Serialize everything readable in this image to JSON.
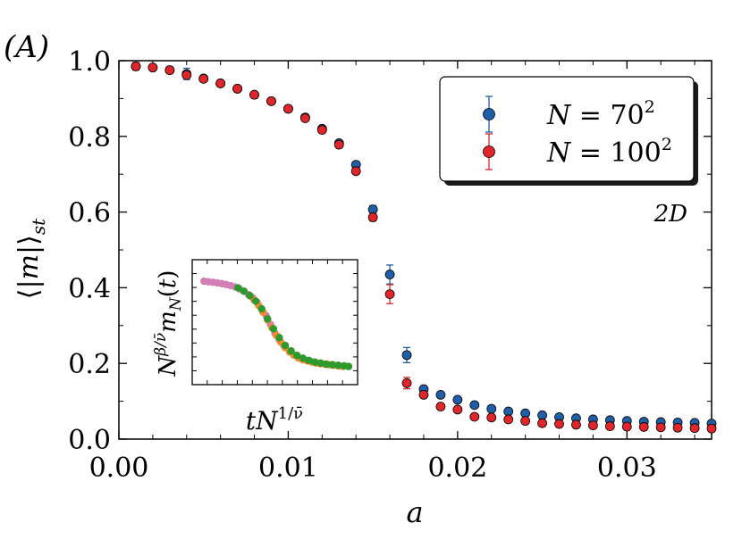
{
  "panel_label": "(A)",
  "colors": {
    "series_70": "#1f5fa8",
    "series_100": "#e0262a",
    "inset_pink": "#d37fb6",
    "inset_green": "#2e9a2e",
    "inset_orange": "#f08a2a"
  },
  "chart_data": [
    {
      "type": "scatter",
      "title": "",
      "xlabel": "a",
      "ylabel": "⟨|m|⟩st",
      "xlim": [
        0.0,
        0.035
      ],
      "ylim": [
        0.0,
        1.0
      ],
      "xticks": [
        0.0,
        0.01,
        0.02,
        0.03
      ],
      "xtick_labels": [
        "0.00",
        "0.01",
        "0.02",
        "0.03"
      ],
      "yticks": [
        0.0,
        0.2,
        0.4,
        0.6,
        0.8,
        1.0
      ],
      "ytick_labels": [
        "0.0",
        "0.2",
        "0.4",
        "0.6",
        "0.8",
        "1.0"
      ],
      "annotation": "2D",
      "legend_position": "top-right",
      "series": [
        {
          "name": "N = 70²",
          "legend_text": "N = 70",
          "legend_exp": "2",
          "color": "#1f5fa8",
          "points": [
            {
              "x": 0.001,
              "y": 0.985,
              "err": 0.01
            },
            {
              "x": 0.002,
              "y": 0.982,
              "err": 0
            },
            {
              "x": 0.003,
              "y": 0.975,
              "err": 0
            },
            {
              "x": 0.004,
              "y": 0.965,
              "err": 0.015
            },
            {
              "x": 0.005,
              "y": 0.953,
              "err": 0
            },
            {
              "x": 0.006,
              "y": 0.94,
              "err": 0
            },
            {
              "x": 0.007,
              "y": 0.926,
              "err": 0
            },
            {
              "x": 0.008,
              "y": 0.91,
              "err": 0
            },
            {
              "x": 0.009,
              "y": 0.893,
              "err": 0
            },
            {
              "x": 0.01,
              "y": 0.873,
              "err": 0
            },
            {
              "x": 0.011,
              "y": 0.85,
              "err": 0
            },
            {
              "x": 0.012,
              "y": 0.82,
              "err": 0
            },
            {
              "x": 0.013,
              "y": 0.782,
              "err": 0
            },
            {
              "x": 0.014,
              "y": 0.725,
              "err": 0
            },
            {
              "x": 0.015,
              "y": 0.607,
              "err": 0.01
            },
            {
              "x": 0.016,
              "y": 0.435,
              "err": 0.025
            },
            {
              "x": 0.017,
              "y": 0.222,
              "err": 0.02
            },
            {
              "x": 0.018,
              "y": 0.132,
              "err": 0.008
            },
            {
              "x": 0.019,
              "y": 0.117,
              "err": 0
            },
            {
              "x": 0.02,
              "y": 0.104,
              "err": 0
            },
            {
              "x": 0.021,
              "y": 0.09,
              "err": 0
            },
            {
              "x": 0.022,
              "y": 0.08,
              "err": 0
            },
            {
              "x": 0.023,
              "y": 0.073,
              "err": 0
            },
            {
              "x": 0.024,
              "y": 0.068,
              "err": 0
            },
            {
              "x": 0.025,
              "y": 0.063,
              "err": 0
            },
            {
              "x": 0.026,
              "y": 0.058,
              "err": 0
            },
            {
              "x": 0.027,
              "y": 0.055,
              "err": 0
            },
            {
              "x": 0.028,
              "y": 0.052,
              "err": 0
            },
            {
              "x": 0.029,
              "y": 0.05,
              "err": 0
            },
            {
              "x": 0.03,
              "y": 0.048,
              "err": 0
            },
            {
              "x": 0.031,
              "y": 0.046,
              "err": 0
            },
            {
              "x": 0.032,
              "y": 0.045,
              "err": 0
            },
            {
              "x": 0.033,
              "y": 0.044,
              "err": 0
            },
            {
              "x": 0.034,
              "y": 0.043,
              "err": 0
            },
            {
              "x": 0.035,
              "y": 0.041,
              "err": 0
            }
          ]
        },
        {
          "name": "N = 100²",
          "legend_text": "N = 100",
          "legend_exp": "2",
          "color": "#e0262a",
          "points": [
            {
              "x": 0.001,
              "y": 0.985,
              "err": 0.01
            },
            {
              "x": 0.002,
              "y": 0.982,
              "err": 0
            },
            {
              "x": 0.003,
              "y": 0.975,
              "err": 0
            },
            {
              "x": 0.004,
              "y": 0.962,
              "err": 0
            },
            {
              "x": 0.005,
              "y": 0.952,
              "err": 0
            },
            {
              "x": 0.006,
              "y": 0.94,
              "err": 0
            },
            {
              "x": 0.007,
              "y": 0.926,
              "err": 0
            },
            {
              "x": 0.008,
              "y": 0.91,
              "err": 0
            },
            {
              "x": 0.009,
              "y": 0.893,
              "err": 0
            },
            {
              "x": 0.01,
              "y": 0.873,
              "err": 0
            },
            {
              "x": 0.011,
              "y": 0.848,
              "err": 0
            },
            {
              "x": 0.012,
              "y": 0.817,
              "err": 0
            },
            {
              "x": 0.013,
              "y": 0.778,
              "err": 0
            },
            {
              "x": 0.014,
              "y": 0.708,
              "err": 0
            },
            {
              "x": 0.015,
              "y": 0.586,
              "err": 0.01
            },
            {
              "x": 0.016,
              "y": 0.383,
              "err": 0.025
            },
            {
              "x": 0.017,
              "y": 0.148,
              "err": 0.015
            },
            {
              "x": 0.018,
              "y": 0.117,
              "err": 0
            },
            {
              "x": 0.019,
              "y": 0.086,
              "err": 0
            },
            {
              "x": 0.02,
              "y": 0.078,
              "err": 0
            },
            {
              "x": 0.021,
              "y": 0.059,
              "err": 0
            },
            {
              "x": 0.022,
              "y": 0.057,
              "err": 0
            },
            {
              "x": 0.023,
              "y": 0.052,
              "err": 0
            },
            {
              "x": 0.024,
              "y": 0.048,
              "err": 0
            },
            {
              "x": 0.025,
              "y": 0.042,
              "err": 0
            },
            {
              "x": 0.026,
              "y": 0.04,
              "err": 0
            },
            {
              "x": 0.027,
              "y": 0.038,
              "err": 0
            },
            {
              "x": 0.028,
              "y": 0.036,
              "err": 0
            },
            {
              "x": 0.029,
              "y": 0.034,
              "err": 0
            },
            {
              "x": 0.03,
              "y": 0.033,
              "err": 0
            },
            {
              "x": 0.031,
              "y": 0.032,
              "err": 0
            },
            {
              "x": 0.032,
              "y": 0.031,
              "err": 0
            },
            {
              "x": 0.033,
              "y": 0.03,
              "err": 0
            },
            {
              "x": 0.034,
              "y": 0.029,
              "err": 0
            },
            {
              "x": 0.035,
              "y": 0.028,
              "err": 0
            }
          ]
        }
      ]
    },
    {
      "type": "scatter",
      "role": "inset",
      "xlabel": "tN^{1/ν̄}",
      "ylabel": "N^{β/ν̄} m_N(t)",
      "xlim": [
        0,
        1
      ],
      "ylim": [
        0,
        1
      ],
      "xtick_count": 10,
      "ytick_count": 8,
      "series": [
        {
          "name": "pink",
          "color": "#d37fb6",
          "x": [
            0.02,
            0.05,
            0.08,
            0.11,
            0.14,
            0.17,
            0.2,
            0.23,
            0.26,
            0.29,
            0.32,
            0.35,
            0.38,
            0.41,
            0.44,
            0.47,
            0.5,
            0.53,
            0.56
          ],
          "y": [
            0.87,
            0.865,
            0.86,
            0.855,
            0.848,
            0.84,
            0.83,
            0.818,
            0.8,
            0.78,
            0.75,
            0.72,
            0.68,
            0.62,
            0.56,
            0.48,
            0.4,
            0.34,
            0.29
          ]
        },
        {
          "name": "orange",
          "color": "#f08a2a",
          "x": [
            0.36,
            0.39,
            0.42,
            0.45,
            0.48,
            0.51,
            0.54,
            0.57,
            0.6,
            0.63,
            0.66,
            0.69,
            0.72,
            0.75,
            0.78,
            0.81,
            0.84,
            0.87,
            0.9,
            0.93,
            0.96
          ],
          "y": [
            0.7,
            0.65,
            0.59,
            0.52,
            0.45,
            0.38,
            0.32,
            0.27,
            0.23,
            0.2,
            0.175,
            0.16,
            0.15,
            0.14,
            0.13,
            0.125,
            0.12,
            0.115,
            0.11,
            0.105,
            0.1
          ]
        },
        {
          "name": "green",
          "color": "#2e9a2e",
          "x": [
            0.25,
            0.29,
            0.33,
            0.37,
            0.41,
            0.45,
            0.49,
            0.53,
            0.57,
            0.61,
            0.65,
            0.69,
            0.73,
            0.77,
            0.81,
            0.85,
            0.89,
            0.93,
            0.97,
            1.0
          ],
          "y": [
            0.81,
            0.78,
            0.74,
            0.69,
            0.62,
            0.53,
            0.44,
            0.36,
            0.29,
            0.24,
            0.2,
            0.175,
            0.155,
            0.14,
            0.13,
            0.12,
            0.115,
            0.11,
            0.105,
            0.1
          ]
        }
      ]
    }
  ]
}
